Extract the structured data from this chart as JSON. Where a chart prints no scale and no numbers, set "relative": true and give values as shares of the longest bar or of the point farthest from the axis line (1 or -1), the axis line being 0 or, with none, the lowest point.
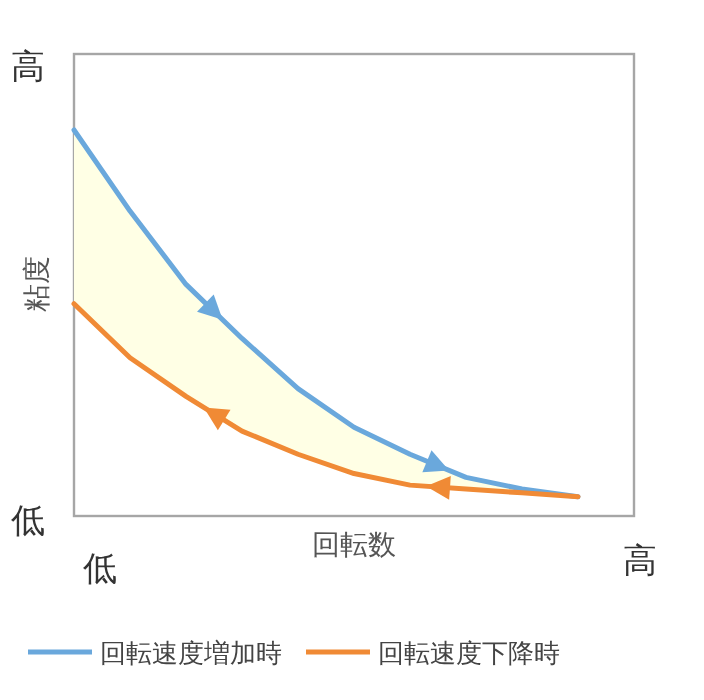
{
  "chart_data": {
    "type": "line",
    "relative": true,
    "xlabel": "回転数",
    "ylabel": "粘度",
    "categories": [
      null,
      null,
      null,
      null,
      null,
      null,
      null,
      null,
      null,
      null,
      null
    ],
    "series": [
      {
        "name": "回転速度増加時",
        "color": "#6aa8dc",
        "values": [
          1,
          0.79,
          0.6,
          0.46,
          0.33,
          0.23,
          0.16,
          0.1,
          0.07,
          0.05,
          null
        ]
      },
      {
        "name": "回転速度下降時",
        "color": "#f08a35",
        "values": [
          0.55,
          0.41,
          0.31,
          0.22,
          0.16,
          0.11,
          0.08,
          0.07,
          0.06,
          0.05,
          null
        ]
      }
    ],
    "annotations": [
      "高",
      "低",
      "低",
      "高"
    ],
    "legend": "bottom",
    "marker": "none",
    "line_style": "solid"
  }
}
